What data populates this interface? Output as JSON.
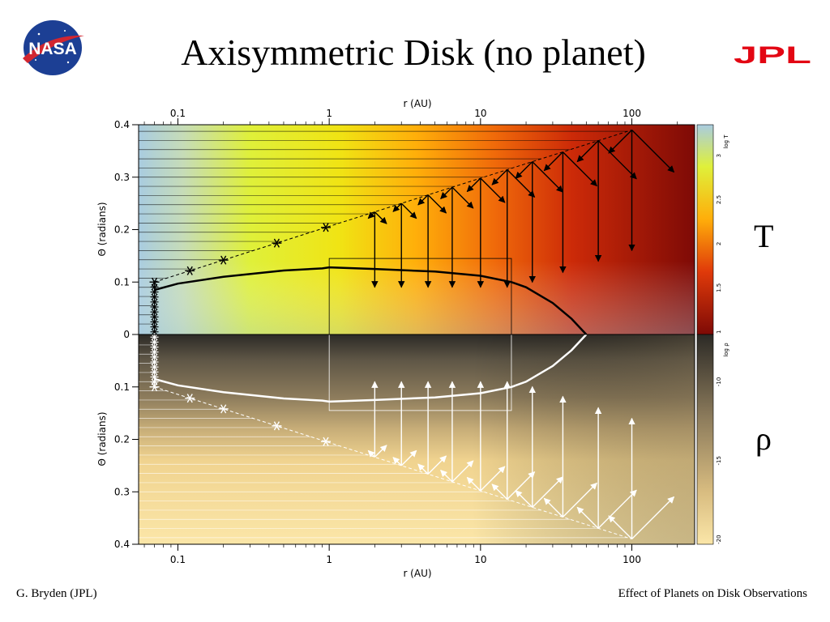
{
  "slide": {
    "title": "Axisymmetric Disk (no planet)",
    "top_panel_label": "T",
    "bottom_panel_label": "ρ",
    "footer_left": "G. Bryden (JPL)",
    "footer_right": "Effect of Planets on Disk Observations",
    "logo_left_text": "NASA",
    "logo_right_text": "JPL"
  },
  "chart_data": [
    {
      "type": "heatmap",
      "title": "",
      "quantity": "T",
      "xlabel": "r (AU)",
      "ylabel": "Θ (radians)",
      "x_scale": "log",
      "xlim": [
        0.055,
        260
      ],
      "ylim": [
        0,
        0.4
      ],
      "x_ticks": [
        "0.1",
        "1",
        "10",
        "100"
      ],
      "y_ticks": [
        "0",
        "0.1",
        "0.2",
        "0.3",
        "0.4"
      ],
      "colorbar": {
        "label": "log T",
        "ticks": [
          "1",
          "1.5",
          "2",
          "2.5",
          "3"
        ]
      },
      "colors": {
        "low": "#8b0a06",
        "mid_low": "#e6420a",
        "mid": "#ffae0a",
        "mid_high": "#dcf014",
        "high": "#a9cce0"
      },
      "photosphere_curve": {
        "r": [
          0.07,
          0.1,
          0.2,
          0.5,
          0.9,
          1.0,
          2,
          5,
          10,
          16,
          20,
          30,
          40,
          50
        ],
        "theta": [
          0.085,
          0.097,
          0.11,
          0.122,
          0.126,
          0.128,
          0.125,
          0.12,
          0.112,
          0.1,
          0.09,
          0.06,
          0.03,
          0.0
        ]
      },
      "surface_line": {
        "r": [
          0.07,
          100
        ],
        "theta": [
          0.1,
          0.39
        ]
      },
      "ray_arrows_r": [
        0.07,
        0.12,
        0.2,
        0.45,
        0.95,
        2,
        3,
        4.5,
        6.5,
        10,
        15,
        22,
        35,
        60,
        100
      ]
    },
    {
      "type": "heatmap",
      "title": "",
      "quantity": "ρ",
      "xlabel": "r (AU)",
      "ylabel": "Θ (radians)",
      "x_scale": "log",
      "xlim": [
        0.055,
        260
      ],
      "ylim": [
        0,
        0.4
      ],
      "x_ticks": [
        "0.1",
        "1",
        "10",
        "100"
      ],
      "y_ticks": [
        "0.1",
        "0.2",
        "0.3",
        "0.4"
      ],
      "colorbar": {
        "label": "log ρ",
        "ticks": [
          "-10",
          "-15",
          "-20"
        ]
      },
      "colors": {
        "low": "#fbe2a0",
        "mid": "#a48c63",
        "high": "#2c2a26"
      },
      "photosphere_curve": {
        "r": [
          0.07,
          0.1,
          0.2,
          0.5,
          0.9,
          1.0,
          2,
          5,
          10,
          16,
          20,
          30,
          40,
          50
        ],
        "theta": [
          0.085,
          0.097,
          0.11,
          0.122,
          0.126,
          0.128,
          0.125,
          0.12,
          0.112,
          0.1,
          0.09,
          0.06,
          0.03,
          0.0
        ]
      },
      "surface_line": {
        "r": [
          0.07,
          100
        ],
        "theta": [
          0.1,
          0.39
        ]
      },
      "ray_arrows_r": [
        0.07,
        0.12,
        0.2,
        0.45,
        0.95,
        2,
        3,
        4.5,
        6.5,
        10,
        15,
        22,
        35,
        60,
        100
      ]
    }
  ]
}
